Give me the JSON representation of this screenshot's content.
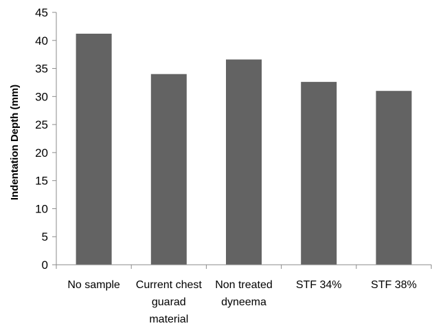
{
  "chart_data": {
    "type": "bar",
    "categories": [
      [
        "No sample"
      ],
      [
        "Current chest",
        "guarad",
        "material"
      ],
      [
        "Non treated",
        "dyneema"
      ],
      [
        "STF 34%"
      ],
      [
        "STF 38%"
      ]
    ],
    "values": [
      41.2,
      34.0,
      36.6,
      32.6,
      31.0
    ],
    "ylabel": "Indentation Depth (mm)",
    "ylim": [
      0,
      45
    ],
    "yticks": [
      "0",
      "5",
      "10",
      "15",
      "20",
      "25",
      "30",
      "35",
      "40",
      "45"
    ],
    "grid": false,
    "bar_color": "#636363"
  }
}
